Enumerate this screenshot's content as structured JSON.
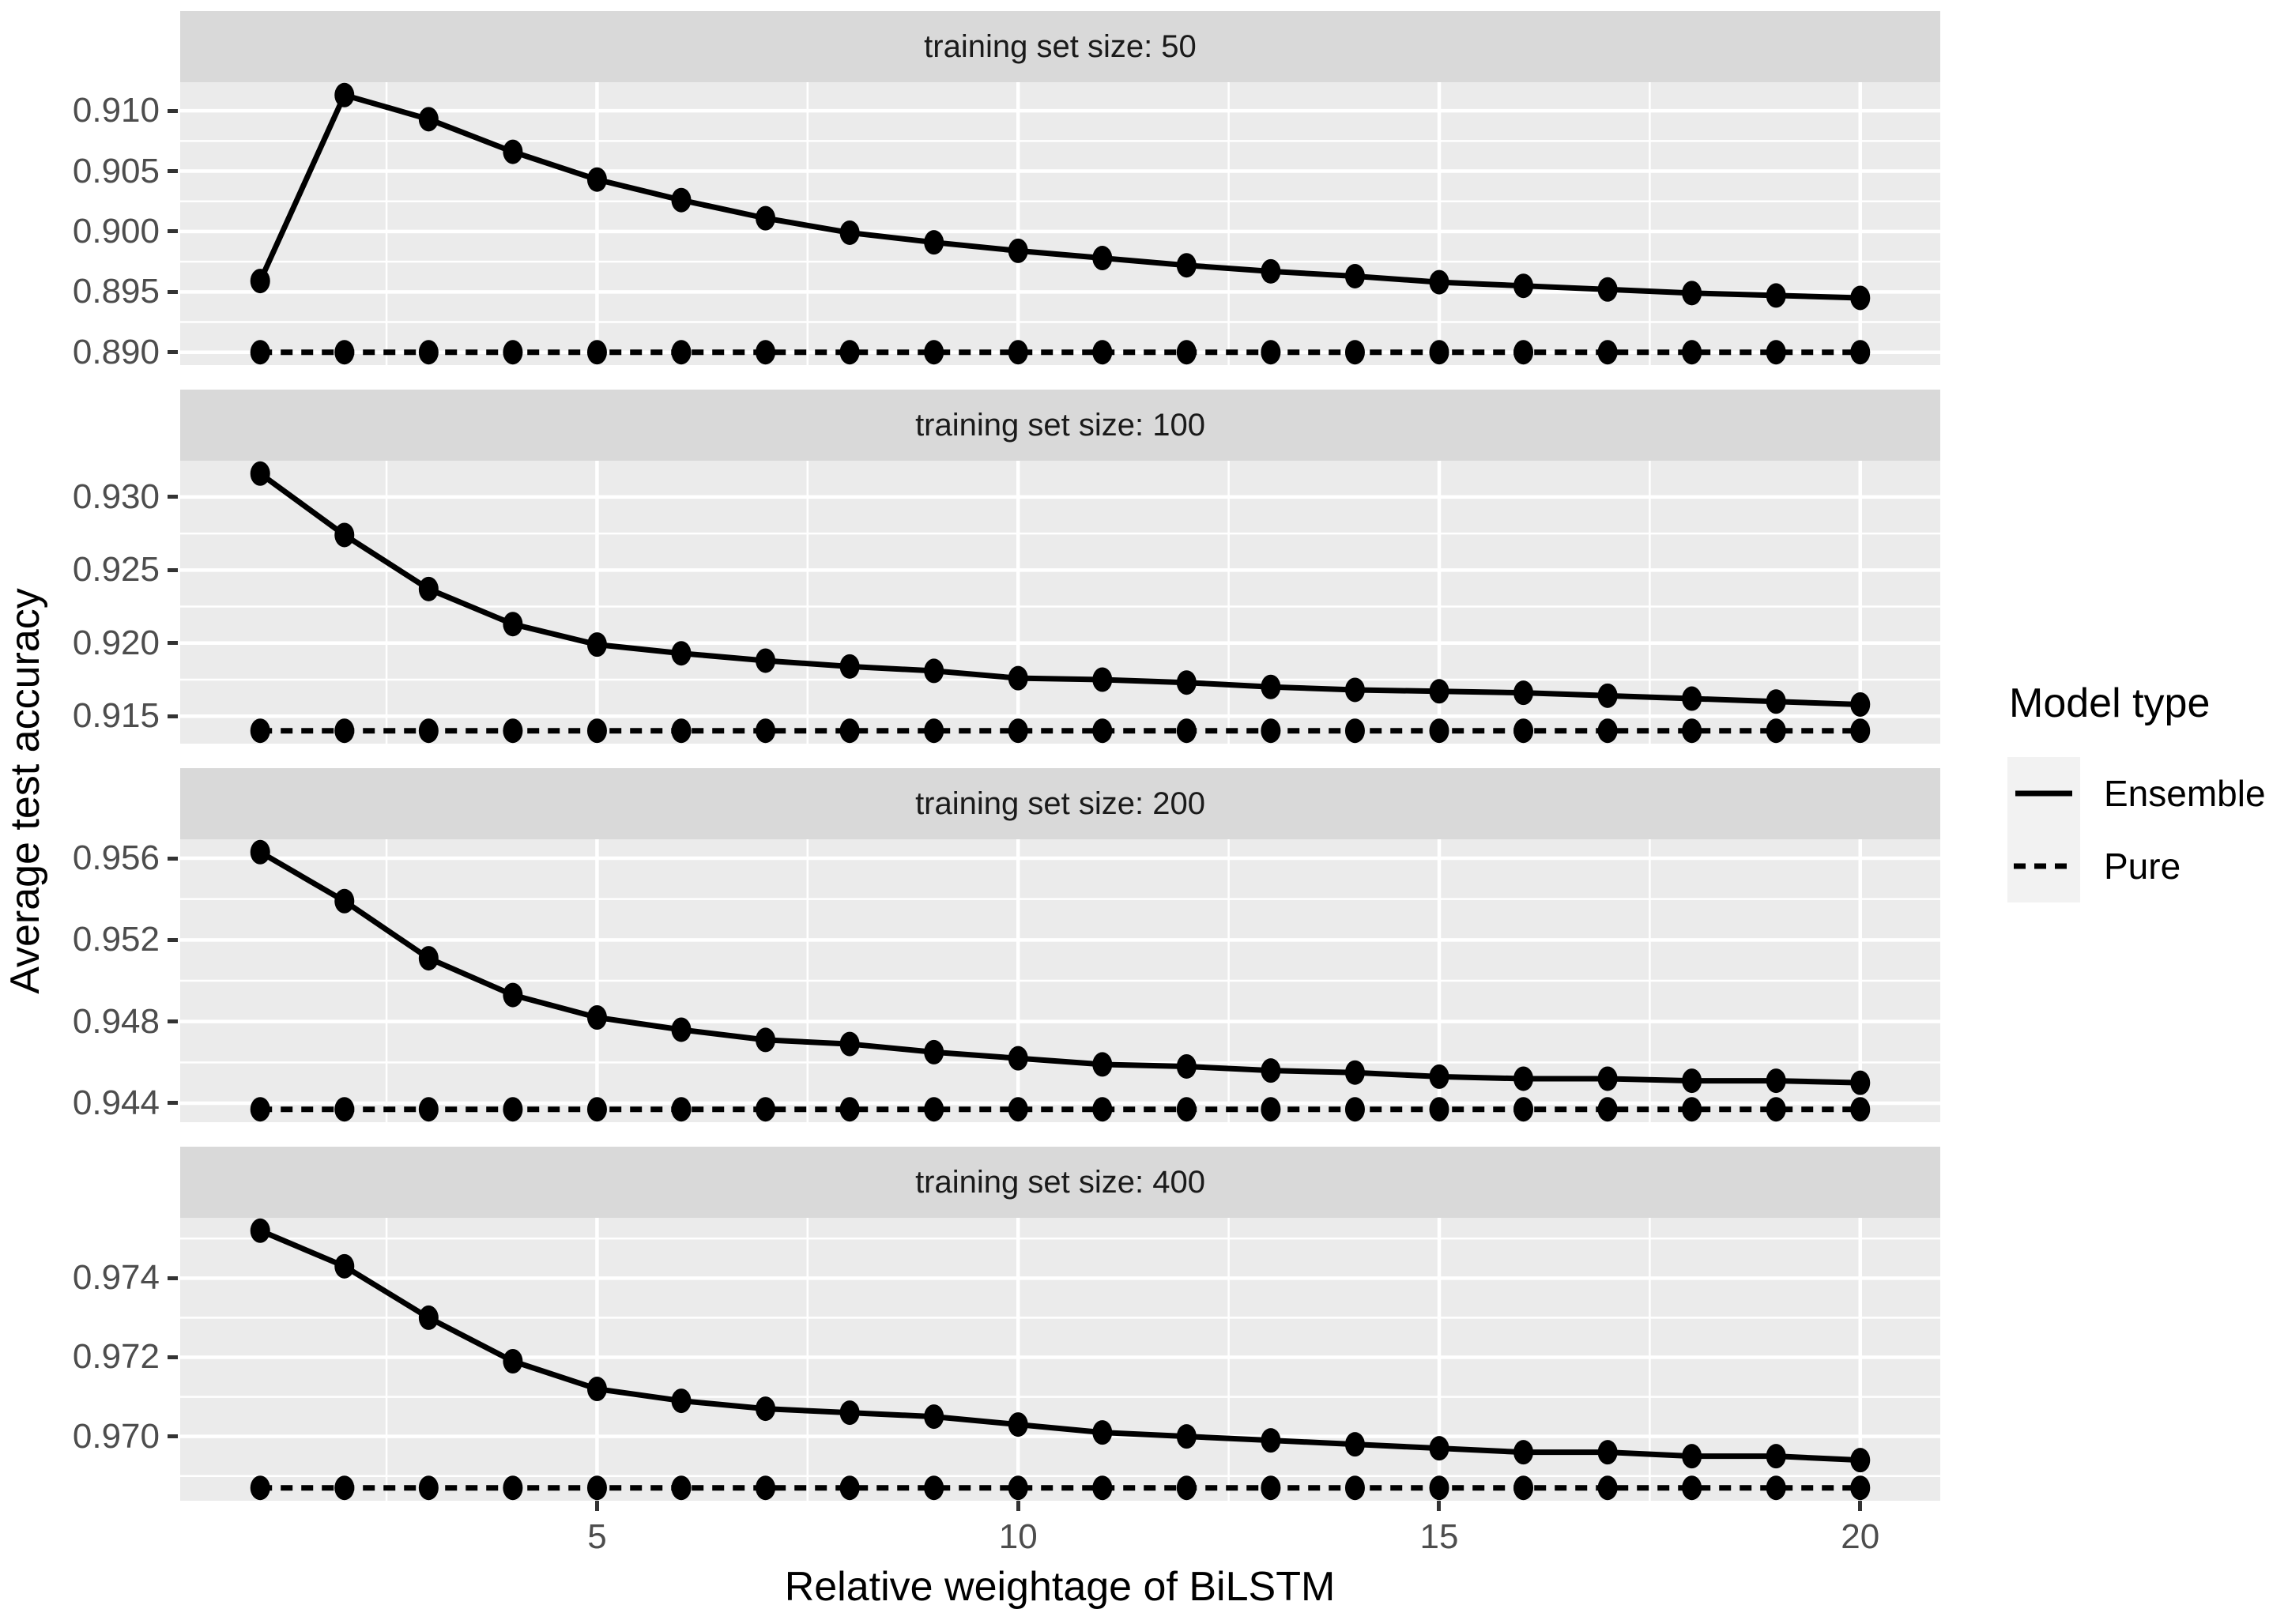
{
  "figure": {
    "kind": "faceted line chart (ggplot style)"
  },
  "colors": {
    "strip_bg": "#d9d9d9",
    "panel_bg": "#ebebeb",
    "gridline": "#ffffff",
    "series": "#000000",
    "tick_label": "#4d4d4d",
    "tick_mark": "#333333",
    "legend_key_bg": "#f2f2f2"
  },
  "axes": {
    "x_title": "Relative weightage of BiLSTM",
    "y_title": "Average test accuracy",
    "x_ticks": [
      5,
      10,
      15,
      20
    ],
    "x_tick_labels": [
      "5",
      "10",
      "15",
      "20"
    ],
    "x_minor_ticks": [
      2.5,
      7.5,
      12.5,
      17.5
    ],
    "x_domain": [
      0.05,
      20.95
    ]
  },
  "legend": {
    "title": "Model type",
    "items": [
      {
        "label": "Ensemble",
        "line_style": "solid"
      },
      {
        "label": "Pure",
        "line_style": "dashed"
      }
    ]
  },
  "chart_data": {
    "type": "line",
    "x": [
      1,
      2,
      3,
      4,
      5,
      6,
      7,
      8,
      9,
      10,
      11,
      12,
      13,
      14,
      15,
      16,
      17,
      18,
      19,
      20
    ],
    "xlabel": "Relative weightage of BiLSTM",
    "ylabel": "Average test accuracy",
    "grid": true,
    "legend_position": "right",
    "facets": [
      {
        "label": "training set size: 50",
        "y_ticks": [
          0.89,
          0.895,
          0.9,
          0.905,
          0.91
        ],
        "y_tick_labels": [
          "0.890",
          "0.895",
          "0.900",
          "0.905",
          "0.910"
        ],
        "y_minor_step": 0.0025,
        "series": [
          {
            "name": "Ensemble",
            "style": "solid",
            "values": [
              0.8959,
              0.9113,
              0.9093,
              0.9066,
              0.9043,
              0.9026,
              0.9011,
              0.8999,
              0.8991,
              0.8984,
              0.8978,
              0.8972,
              0.8967,
              0.8963,
              0.8958,
              0.8955,
              0.8952,
              0.8949,
              0.8947,
              0.8945
            ]
          },
          {
            "name": "Pure",
            "style": "dashed",
            "values": [
              0.89,
              0.89,
              0.89,
              0.89,
              0.89,
              0.89,
              0.89,
              0.89,
              0.89,
              0.89,
              0.89,
              0.89,
              0.89,
              0.89,
              0.89,
              0.89,
              0.89,
              0.89,
              0.89,
              0.89
            ]
          }
        ]
      },
      {
        "label": "training set size: 100",
        "y_ticks": [
          0.915,
          0.92,
          0.925,
          0.93
        ],
        "y_tick_labels": [
          "0.915",
          "0.920",
          "0.925",
          "0.930"
        ],
        "y_minor_step": 0.0025,
        "series": [
          {
            "name": "Ensemble",
            "style": "solid",
            "values": [
              0.9316,
              0.9274,
              0.9237,
              0.9213,
              0.9199,
              0.9193,
              0.9188,
              0.9184,
              0.9181,
              0.9176,
              0.9175,
              0.9173,
              0.917,
              0.9168,
              0.9167,
              0.9166,
              0.9164,
              0.9162,
              0.916,
              0.9158
            ]
          },
          {
            "name": "Pure",
            "style": "dashed",
            "values": [
              0.914,
              0.914,
              0.914,
              0.914,
              0.914,
              0.914,
              0.914,
              0.914,
              0.914,
              0.914,
              0.914,
              0.914,
              0.914,
              0.914,
              0.914,
              0.914,
              0.914,
              0.914,
              0.914,
              0.914
            ]
          }
        ]
      },
      {
        "label": "training set size: 200",
        "y_ticks": [
          0.944,
          0.948,
          0.952,
          0.956
        ],
        "y_tick_labels": [
          "0.944",
          "0.948",
          "0.952",
          "0.956"
        ],
        "y_minor_step": 0.002,
        "series": [
          {
            "name": "Ensemble",
            "style": "solid",
            "values": [
              0.9563,
              0.9539,
              0.9511,
              0.9493,
              0.9482,
              0.9476,
              0.9471,
              0.9469,
              0.9465,
              0.9462,
              0.9459,
              0.9458,
              0.9456,
              0.9455,
              0.9453,
              0.9452,
              0.9452,
              0.9451,
              0.9451,
              0.945
            ]
          },
          {
            "name": "Pure",
            "style": "dashed",
            "values": [
              0.9437,
              0.9437,
              0.9437,
              0.9437,
              0.9437,
              0.9437,
              0.9437,
              0.9437,
              0.9437,
              0.9437,
              0.9437,
              0.9437,
              0.9437,
              0.9437,
              0.9437,
              0.9437,
              0.9437,
              0.9437,
              0.9437,
              0.9437
            ]
          }
        ]
      },
      {
        "label": "training set size: 400",
        "y_ticks": [
          0.97,
          0.972,
          0.974
        ],
        "y_tick_labels": [
          "0.970",
          "0.972",
          "0.974"
        ],
        "y_minor_step": 0.001,
        "series": [
          {
            "name": "Ensemble",
            "style": "solid",
            "values": [
              0.9752,
              0.9743,
              0.973,
              0.9719,
              0.9712,
              0.9709,
              0.9707,
              0.9706,
              0.9705,
              0.9703,
              0.9701,
              0.97,
              0.9699,
              0.9698,
              0.9697,
              0.9696,
              0.9696,
              0.9695,
              0.9695,
              0.9694
            ]
          },
          {
            "name": "Pure",
            "style": "dashed",
            "values": [
              0.9687,
              0.9687,
              0.9687,
              0.9687,
              0.9687,
              0.9687,
              0.9687,
              0.9687,
              0.9687,
              0.9687,
              0.9687,
              0.9687,
              0.9687,
              0.9687,
              0.9687,
              0.9687,
              0.9687,
              0.9687,
              0.9687,
              0.9687
            ]
          }
        ]
      }
    ]
  }
}
